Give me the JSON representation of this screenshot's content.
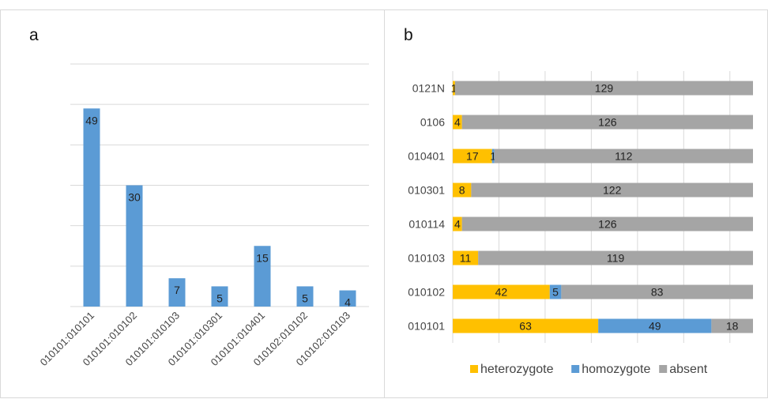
{
  "panels": {
    "a_label": "a",
    "b_label": "b"
  },
  "colors": {
    "bar_a": "#5b9bd5",
    "heterozygote": "#ffc000",
    "homozygote": "#5b9bd5",
    "absent": "#a5a5a5",
    "grid": "#d9d9d9"
  },
  "chart_data": [
    {
      "type": "bar",
      "categories": [
        "010101:010101",
        "010101:010102",
        "010101:010103",
        "010101:010301",
        "010101:010401",
        "010102:010102",
        "010102:010103"
      ],
      "values": [
        49,
        30,
        7,
        5,
        15,
        5,
        4
      ],
      "ylim": [
        0,
        60
      ],
      "grid": true
    },
    {
      "type": "bar",
      "orientation": "horizontal",
      "stacked": true,
      "categories": [
        "0121N",
        "0106",
        "010401",
        "010301",
        "010114",
        "010103",
        "010102",
        "010101"
      ],
      "series": [
        {
          "name": "heterozygote",
          "values": [
            1,
            4,
            17,
            8,
            4,
            11,
            42,
            63
          ]
        },
        {
          "name": "homozygote",
          "values": [
            0,
            0,
            1,
            0,
            0,
            0,
            5,
            49
          ]
        },
        {
          "name": "absent",
          "values": [
            129,
            126,
            112,
            122,
            126,
            119,
            83,
            18
          ]
        }
      ],
      "xlim": [
        0,
        130
      ],
      "grid": true,
      "legend": "bottom"
    }
  ]
}
